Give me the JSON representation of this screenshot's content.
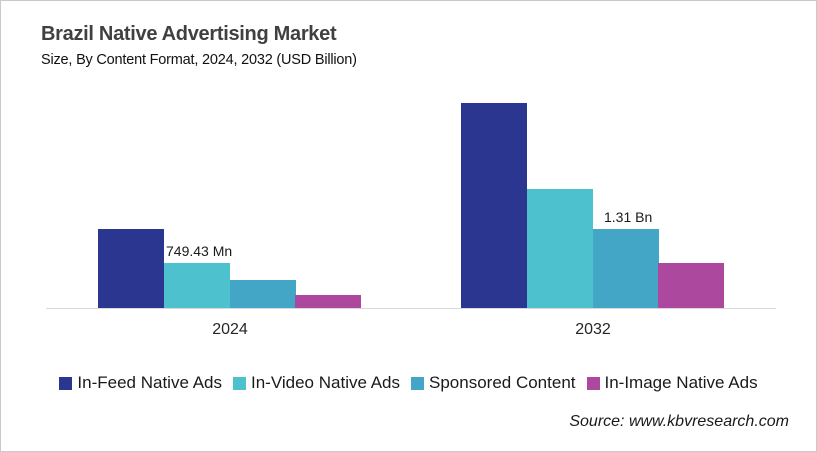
{
  "page": {
    "background": "#ffffff",
    "border_color": "#c9c9c9"
  },
  "header": {
    "title": "Brazil Native Advertising Market",
    "subtitle": "Size, By Content Format, 2024, 2032 (USD Billion)"
  },
  "source": {
    "label": "Source: www.kbvresearch.com"
  },
  "chart_data": {
    "type": "bar",
    "title": "Brazil Native Advertising Market",
    "subtitle": "Size, By Content Format, 2024, 2032 (USD Billion)",
    "unit": "USD Billion",
    "categories": [
      "2024",
      "2032"
    ],
    "series": [
      {
        "name": "In-Feed Native Ads",
        "color": "#2b3691",
        "values": [
          1.3,
          3.4
        ]
      },
      {
        "name": "In-Video Native Ads",
        "color": "#4dc2ce",
        "values": [
          0.74943,
          1.97
        ]
      },
      {
        "name": "Sponsored Content",
        "color": "#44a6c6",
        "values": [
          0.46,
          1.31
        ]
      },
      {
        "name": "In-Image Native Ads",
        "color": "#ac489e",
        "values": [
          0.21,
          0.745
        ]
      }
    ],
    "data_labels": [
      {
        "category": "2024",
        "series": "In-Video Native Ads",
        "text": "749.43 Mn"
      },
      {
        "category": "2032",
        "series": "Sponsored Content",
        "text": "1.31 Bn"
      }
    ],
    "ylim": [
      0,
      3.6
    ],
    "grid": false,
    "y_axis_visible": false,
    "legend_position": "bottom",
    "axis_line_color": "#d9d9d9"
  }
}
